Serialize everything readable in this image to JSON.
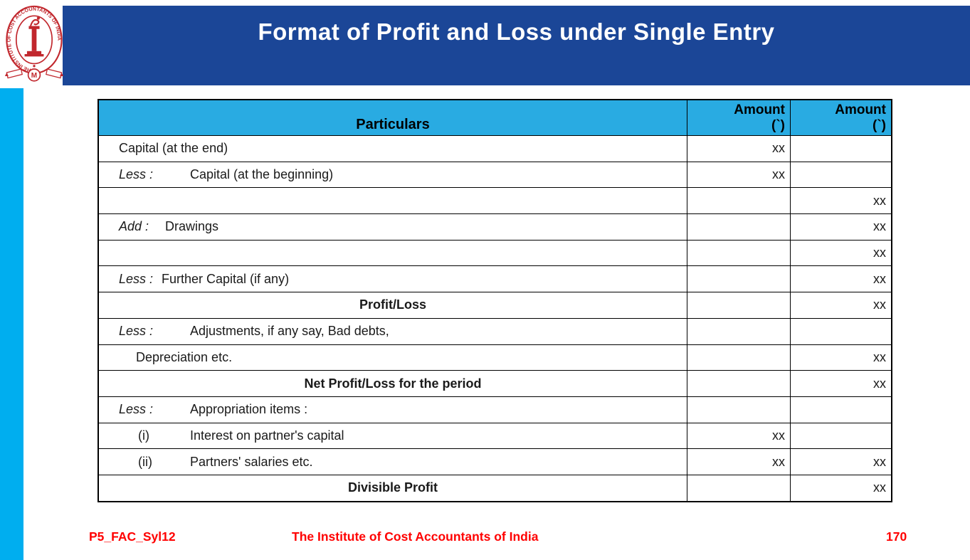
{
  "header": {
    "title": "Format of Profit and Loss under Single Entry"
  },
  "logo": {
    "ring_text": "THE INSTITUTE OF COST ACCOUNTANTS OF INDIA",
    "medallion_letter": "M",
    "color": "#C1272D"
  },
  "table": {
    "columns": [
      {
        "label": "Particulars"
      },
      {
        "line1": "Amount",
        "line2": "(`)"
      },
      {
        "line1": "Amount",
        "line2": "(`)"
      }
    ],
    "rows": [
      {
        "indent": 28,
        "prefix": "",
        "prefix_italic": false,
        "prefix_width": 0,
        "label": "Capital (at the end)",
        "align": "left",
        "bold": false,
        "a1": "xx",
        "a2": ""
      },
      {
        "indent": 28,
        "prefix": "Less :",
        "prefix_italic": true,
        "prefix_width": 100,
        "label": "Capital (at the beginning)",
        "align": "left",
        "bold": false,
        "a1": "xx",
        "a2": ""
      },
      {
        "indent": 0,
        "prefix": "",
        "prefix_italic": false,
        "prefix_width": 0,
        "label": "",
        "align": "left",
        "bold": false,
        "a1": "",
        "a2": "xx"
      },
      {
        "indent": 28,
        "prefix": "Add :",
        "prefix_italic": true,
        "prefix_width": 65,
        "label": "Drawings",
        "align": "left",
        "bold": false,
        "a1": "",
        "a2": "xx"
      },
      {
        "indent": 0,
        "prefix": "",
        "prefix_italic": false,
        "prefix_width": 0,
        "label": "",
        "align": "left",
        "bold": false,
        "a1": "",
        "a2": "xx"
      },
      {
        "indent": 28,
        "prefix": "Less :",
        "prefix_italic": true,
        "prefix_width": 60,
        "label": "Further Capital (if any)",
        "align": "left",
        "bold": false,
        "a1": "",
        "a2": "xx"
      },
      {
        "indent": 0,
        "prefix": "",
        "prefix_italic": false,
        "prefix_width": 0,
        "label": "Profit/Loss",
        "align": "center",
        "bold": true,
        "a1": "",
        "a2": "xx"
      },
      {
        "indent": 28,
        "prefix": "Less :",
        "prefix_italic": true,
        "prefix_width": 100,
        "label": "Adjustments, if any say, Bad debts,",
        "align": "left",
        "bold": false,
        "a1": "",
        "a2": ""
      },
      {
        "indent": 52,
        "prefix": "",
        "prefix_italic": false,
        "prefix_width": 0,
        "label": "Depreciation etc.",
        "align": "left",
        "bold": false,
        "a1": "",
        "a2": "xx"
      },
      {
        "indent": 0,
        "prefix": "",
        "prefix_italic": false,
        "prefix_width": 0,
        "label": "Net Profit/Loss for the period",
        "align": "center",
        "bold": true,
        "a1": "",
        "a2": "xx"
      },
      {
        "indent": 28,
        "prefix": "Less :",
        "prefix_italic": true,
        "prefix_width": 100,
        "label": "Appropriation items :",
        "align": "left",
        "bold": false,
        "a1": "",
        "a2": ""
      },
      {
        "indent": 55,
        "prefix": "(i)",
        "prefix_italic": false,
        "prefix_width": 73,
        "label": "Interest on partner's capital",
        "align": "left",
        "bold": false,
        "a1": "xx",
        "a2": ""
      },
      {
        "indent": 55,
        "prefix": "(ii)",
        "prefix_italic": false,
        "prefix_width": 73,
        "label": "Partners' salaries etc.",
        "align": "left",
        "bold": false,
        "a1": "xx",
        "a2": "xx"
      },
      {
        "indent": 0,
        "prefix": "",
        "prefix_italic": false,
        "prefix_width": 0,
        "label": "Divisible Profit",
        "align": "center",
        "bold": true,
        "a1": "",
        "a2": "xx"
      }
    ]
  },
  "footer": {
    "left": "P5_FAC_Syl12",
    "center": "The Institute of Cost Accountants of India",
    "page": "170"
  },
  "colors": {
    "band_navy": "#1B4697",
    "stripe_cyan": "#00AEEF",
    "table_header_cyan": "#29ABE2",
    "footer_red": "#FF0000",
    "logo_red": "#C1272D"
  }
}
